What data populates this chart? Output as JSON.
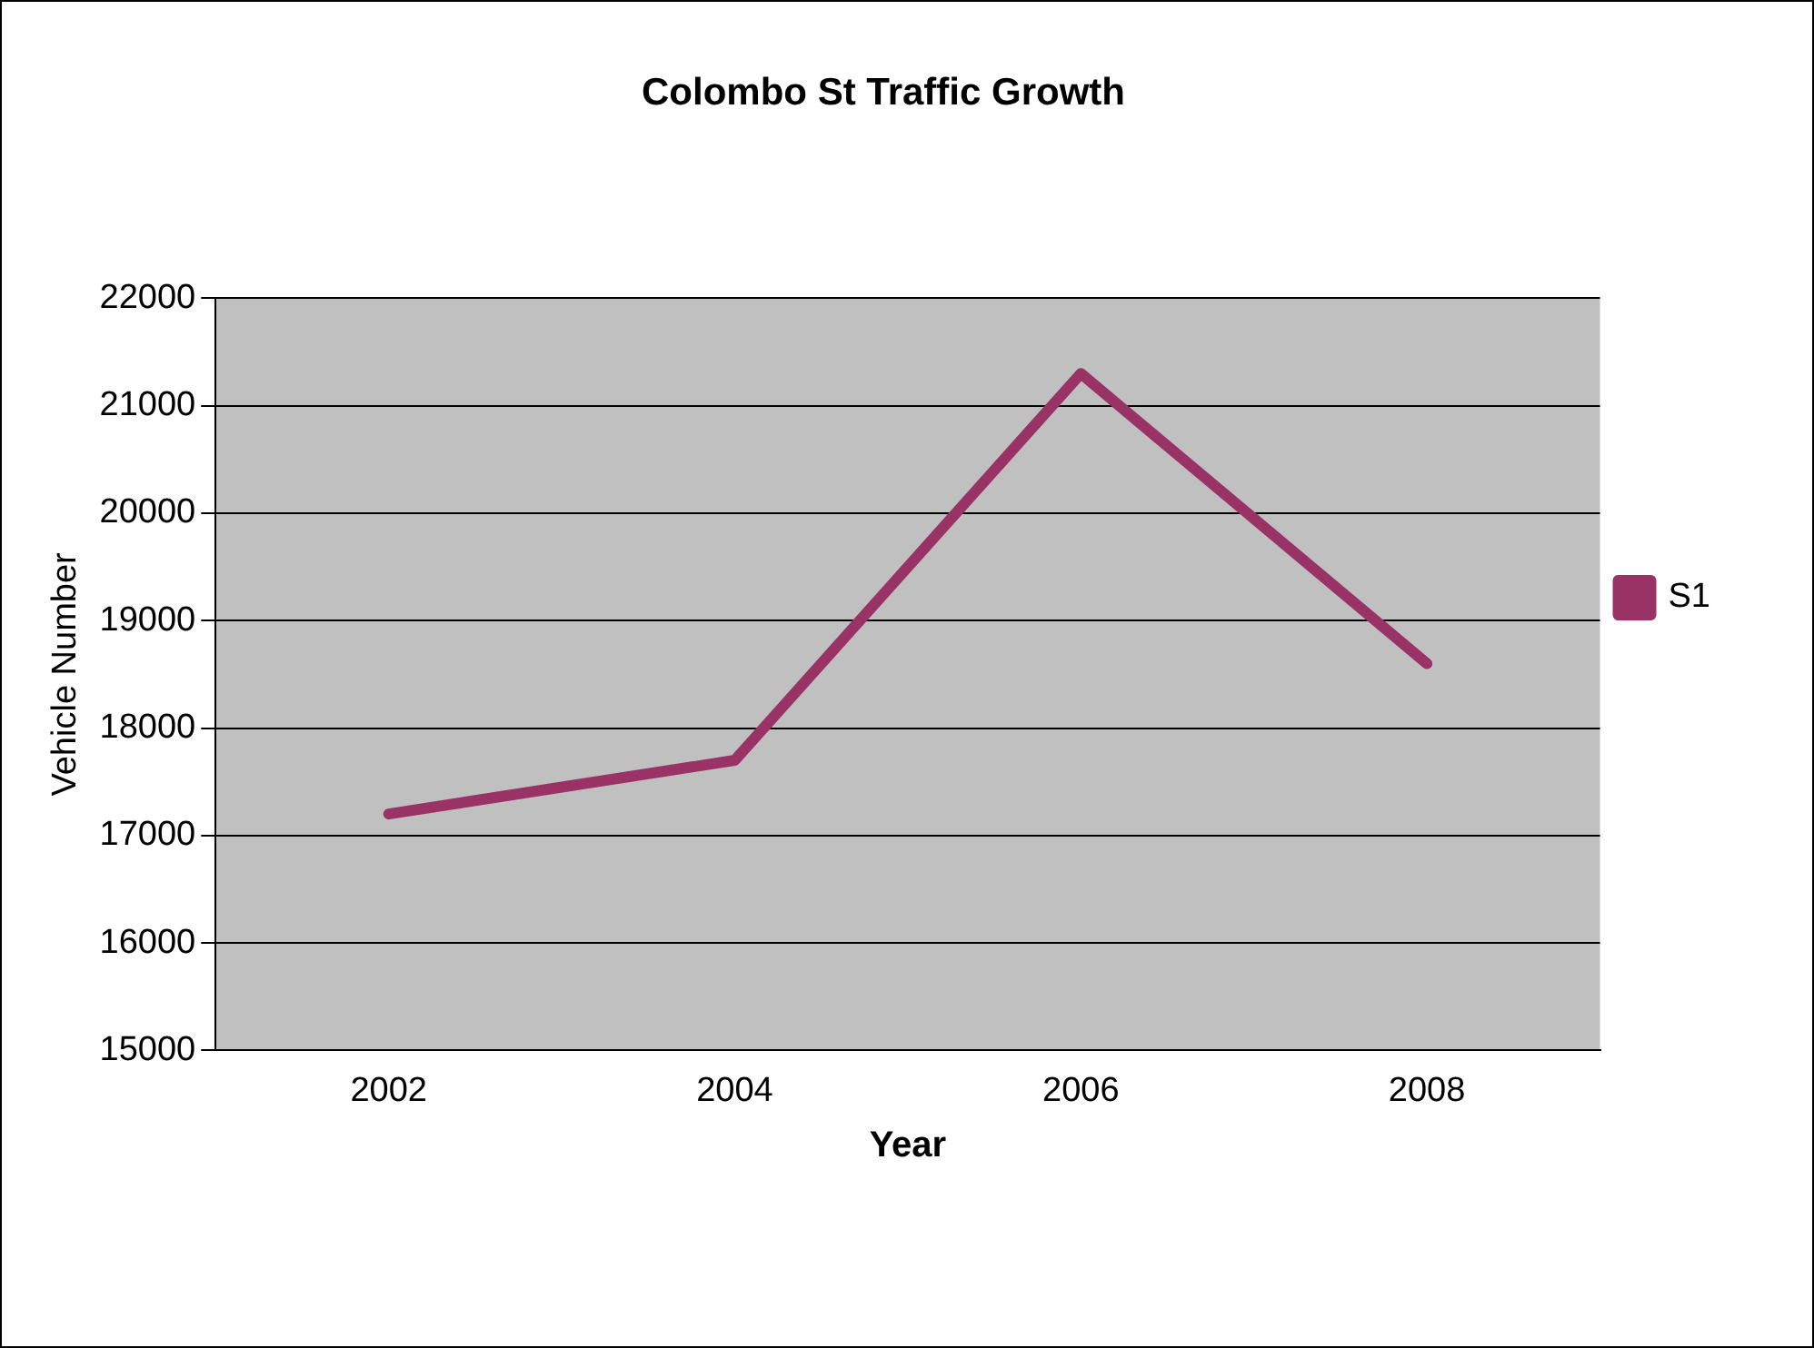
{
  "chart_data": {
    "type": "line",
    "title": "Colombo St Traffic Growth",
    "xlabel": "Year",
    "ylabel": "Vehicle Number",
    "categories": [
      "2002",
      "2004",
      "2006",
      "2008"
    ],
    "series": [
      {
        "name": "S1",
        "color": "#993366",
        "values": [
          17200,
          17700,
          21300,
          18600
        ]
      }
    ],
    "ylim": [
      15000,
      22000
    ],
    "yticks": [
      15000,
      16000,
      17000,
      18000,
      19000,
      20000,
      21000,
      22000
    ],
    "grid": "y",
    "legend": "right",
    "marker": "none",
    "line_style": "solid"
  }
}
